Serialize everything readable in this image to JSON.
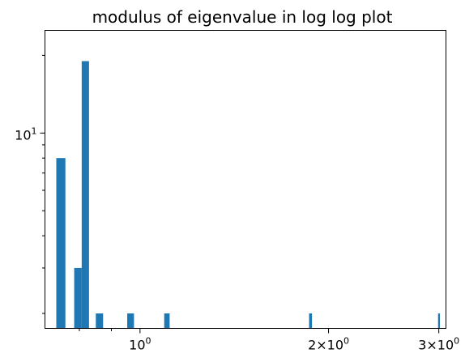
{
  "chart_data": {
    "type": "bar",
    "title": "modulus of eigenvalue in log log plot",
    "xlabel": "",
    "ylabel": "",
    "xscale": "log",
    "yscale": "log",
    "xlim": [
      0.705,
      3.08
    ],
    "ylim": [
      1.75,
      25
    ],
    "grid": false,
    "bar_color": "#1f77b4",
    "bins": [
      {
        "x0": 0.735,
        "x1": 0.76,
        "count": 8
      },
      {
        "x0": 0.785,
        "x1": 0.807,
        "count": 3
      },
      {
        "x0": 0.807,
        "x1": 0.829,
        "count": 19
      },
      {
        "x0": 0.85,
        "x1": 0.873,
        "count": 2
      },
      {
        "x0": 0.954,
        "x1": 0.978,
        "count": 2
      },
      {
        "x0": 1.093,
        "x1": 1.115,
        "count": 2
      },
      {
        "x0": 1.862,
        "x1": 1.882,
        "count": 2
      },
      {
        "x0": 2.992,
        "x1": 3.012,
        "count": 2
      }
    ],
    "x_ticks": [
      {
        "value": 1,
        "base": "10",
        "exp": "0"
      },
      {
        "value": 2,
        "coef": "2",
        "base": "10",
        "exp": "0"
      },
      {
        "value": 3,
        "coef": "3",
        "base": "10",
        "exp": "0"
      }
    ],
    "x_minor_ticks": [
      0.8,
      0.9
    ],
    "y_ticks": [
      {
        "value": 10,
        "base": "10",
        "exp": "1"
      }
    ]
  }
}
